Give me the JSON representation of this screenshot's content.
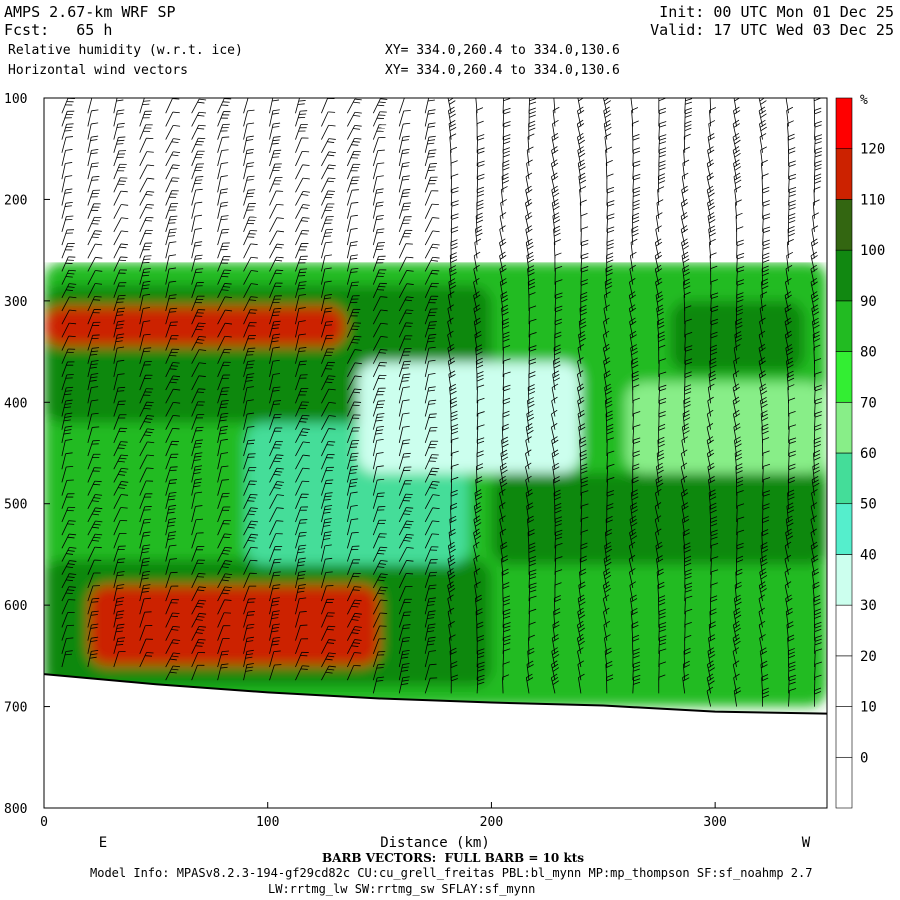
{
  "header": {
    "model": "AMPS 2.67-km WRF SP",
    "fcst": "Fcst:   65 h",
    "init": "Init: 00 UTC Mon 01 Dec 25",
    "valid": "Valid: 17 UTC Wed 03 Dec 25",
    "field1": "Relative humidity (w.r.t. ice)",
    "field2": "Horizontal wind vectors",
    "xy1": "XY= 334.0,260.4 to 334.0,130.6",
    "xy2": "XY= 334.0,260.4 to 334.0,130.6"
  },
  "footer": {
    "barb": "BARB VECTORS:  FULL BARB = 10 kts",
    "info1": "Model Info: MPASv8.2.3-194-gf29cd82c CU:cu_grell_freitas PBL:bl_mynn MP:mp_thompson SF:sf_noahmp 2.7",
    "info2": "LW:rrtmg_lw SW:rrtmg_sw SFLAY:sf_mynn"
  },
  "chart_data": {
    "type": "heatmap",
    "xlabel": "Distance (km)",
    "ylabel": "",
    "xlim": [
      0,
      350
    ],
    "ylim": [
      800,
      100
    ],
    "x_ticks": [
      0,
      100,
      200,
      300
    ],
    "y_ticks": [
      100,
      200,
      300,
      400,
      500,
      600,
      700,
      800
    ],
    "x_end_labels": {
      "left": "E",
      "right": "W"
    },
    "colorbar": {
      "unit": "%",
      "levels": [
        0,
        10,
        20,
        30,
        40,
        50,
        60,
        70,
        80,
        90,
        100,
        110,
        120
      ],
      "colors": [
        "#ffffff",
        "#ffffff",
        "#ffffff",
        "#ccffee",
        "#55eecc",
        "#44dd99",
        "#88ee88",
        "#33ee33",
        "#22bb22",
        "#118811",
        "#336611",
        "#cc2200",
        "#ff0000"
      ]
    },
    "terrain_pressure": [
      {
        "x": 0,
        "p": 668
      },
      {
        "x": 50,
        "p": 678
      },
      {
        "x": 100,
        "p": 686
      },
      {
        "x": 150,
        "p": 692
      },
      {
        "x": 200,
        "p": 696
      },
      {
        "x": 250,
        "p": 699
      },
      {
        "x": 300,
        "p": 705
      },
      {
        "x": 350,
        "p": 707
      }
    ],
    "cloud_top_pressure": 262,
    "regions": [
      {
        "value": 85,
        "x": [
          0,
          350
        ],
        "p": [
          262,
          700
        ]
      },
      {
        "value": 95,
        "x": [
          0,
          200
        ],
        "p": [
          285,
          420
        ]
      },
      {
        "value": 115,
        "x": [
          0,
          135
        ],
        "p": [
          305,
          345
        ]
      },
      {
        "value": 95,
        "x": [
          0,
          200
        ],
        "p": [
          555,
          680
        ]
      },
      {
        "value": 115,
        "x": [
          20,
          150
        ],
        "p": [
          580,
          660
        ]
      },
      {
        "value": 55,
        "x": [
          90,
          190
        ],
        "p": [
          420,
          560
        ]
      },
      {
        "value": 35,
        "x": [
          140,
          240
        ],
        "p": [
          360,
          470
        ]
      },
      {
        "value": 95,
        "x": [
          200,
          350
        ],
        "p": [
          470,
          560
        ]
      },
      {
        "value": 95,
        "x": [
          280,
          340
        ],
        "p": [
          300,
          370
        ]
      },
      {
        "value": 65,
        "x": [
          260,
          350
        ],
        "p": [
          380,
          470
        ]
      }
    ]
  }
}
